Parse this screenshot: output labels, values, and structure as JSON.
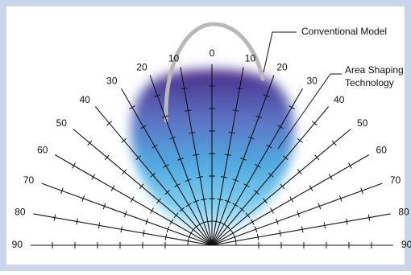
{
  "annotations": {
    "conventional": "Conventional Model",
    "area_shaping": [
      "Area Shaping",
      "Technology"
    ]
  },
  "left_angles": [
    90,
    80,
    70,
    60,
    50,
    40,
    30,
    20,
    10
  ],
  "center_angle": 0,
  "right_angles": [
    10,
    20,
    30,
    40,
    50,
    60,
    70,
    80,
    90
  ]
}
